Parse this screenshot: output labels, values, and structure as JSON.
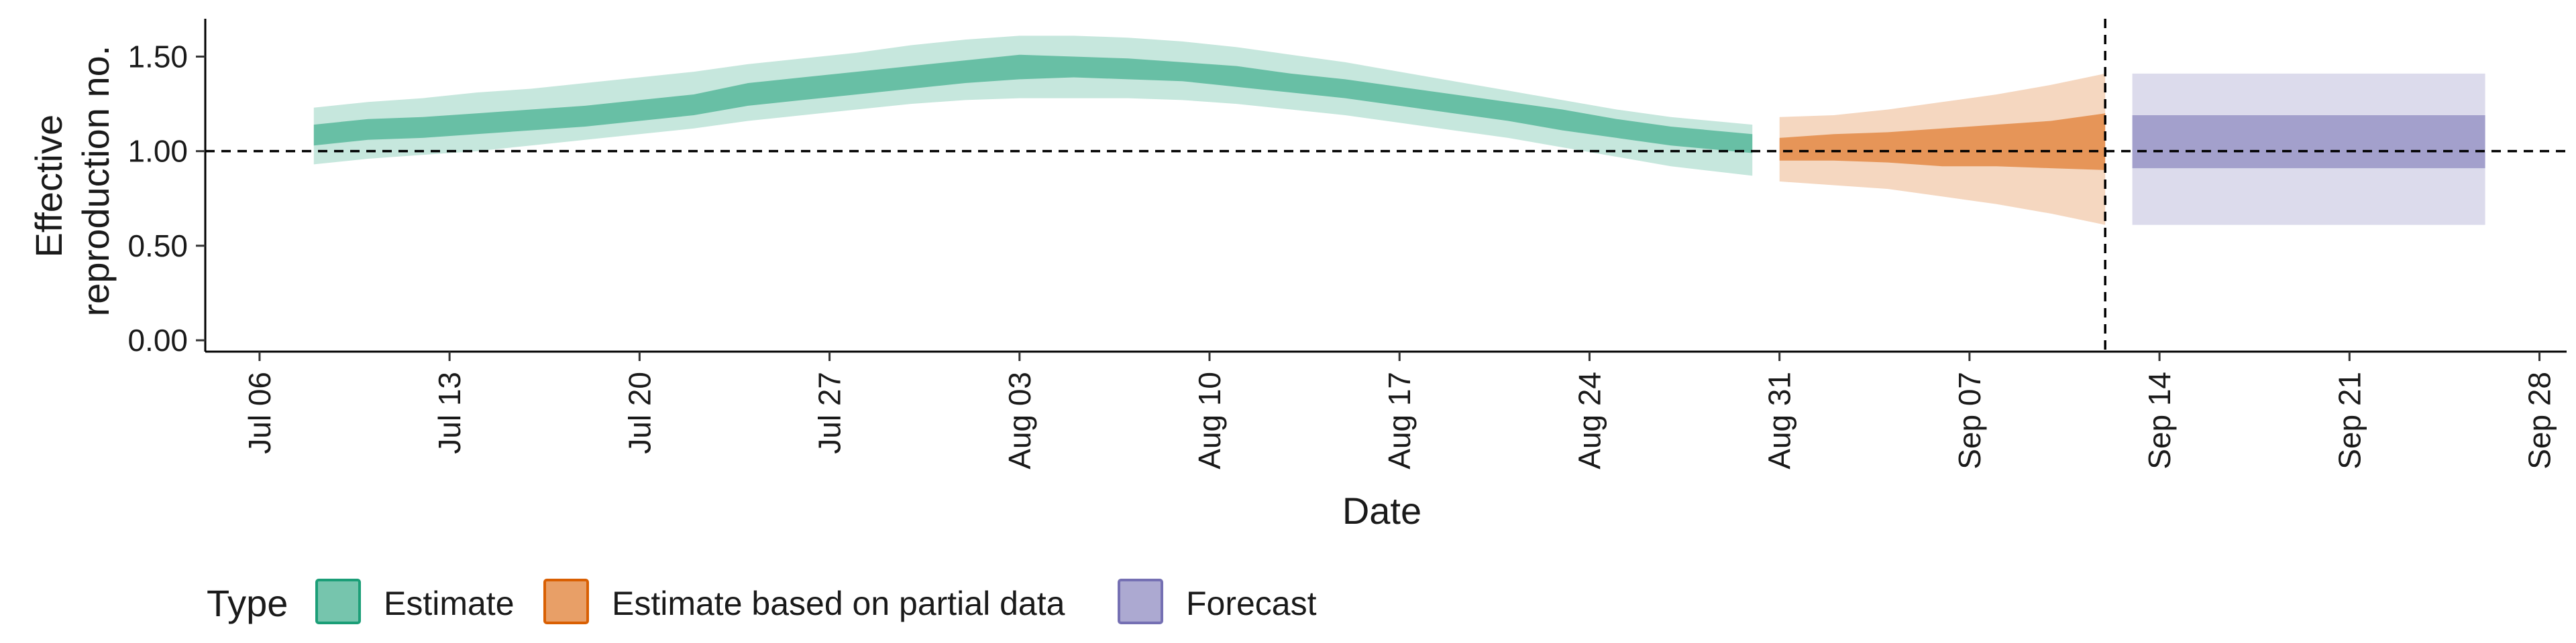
{
  "chart_data": {
    "type": "area",
    "xlabel": "Date",
    "ylabel_lines": [
      "Effective",
      "reproduction no."
    ],
    "ylim": [
      -0.06,
      1.7
    ],
    "xlim": [
      "2020-07-04",
      "2020-09-29"
    ],
    "y_ticks": [
      "0.00",
      "0.50",
      "1.00",
      "1.50"
    ],
    "x_ticks": [
      {
        "date": "2020-07-06",
        "label": "Jul 06"
      },
      {
        "date": "2020-07-13",
        "label": "Jul 13"
      },
      {
        "date": "2020-07-20",
        "label": "Jul 20"
      },
      {
        "date": "2020-07-27",
        "label": "Jul 27"
      },
      {
        "date": "2020-08-03",
        "label": "Aug 03"
      },
      {
        "date": "2020-08-10",
        "label": "Aug 10"
      },
      {
        "date": "2020-08-17",
        "label": "Aug 17"
      },
      {
        "date": "2020-08-24",
        "label": "Aug 24"
      },
      {
        "date": "2020-08-31",
        "label": "Aug 31"
      },
      {
        "date": "2020-09-07",
        "label": "Sep 07"
      },
      {
        "date": "2020-09-14",
        "label": "Sep 14"
      },
      {
        "date": "2020-09-21",
        "label": "Sep 21"
      },
      {
        "date": "2020-09-28",
        "label": "Sep 28"
      }
    ],
    "reference_line_y": 1.0,
    "vertical_line_x": "2020-09-12",
    "grid": false,
    "legend": {
      "title": "Type",
      "position": "bottom",
      "entries": [
        {
          "label": "Estimate",
          "fill": "#1b9e77",
          "stroke": "#1b9e77"
        },
        {
          "label": "Estimate based on partial data",
          "fill": "#d95f02",
          "stroke": "#d95f02"
        },
        {
          "label": "Forecast",
          "fill": "#7570b3",
          "stroke": "#7570b3"
        }
      ]
    },
    "series": [
      {
        "name": "Estimate",
        "color": "#1b9e77",
        "x": [
          "2020-07-08",
          "2020-07-10",
          "2020-07-12",
          "2020-07-14",
          "2020-07-16",
          "2020-07-18",
          "2020-07-20",
          "2020-07-22",
          "2020-07-24",
          "2020-07-26",
          "2020-07-28",
          "2020-07-30",
          "2020-08-01",
          "2020-08-03",
          "2020-08-05",
          "2020-08-07",
          "2020-08-09",
          "2020-08-11",
          "2020-08-13",
          "2020-08-15",
          "2020-08-17",
          "2020-08-19",
          "2020-08-21",
          "2020-08-23",
          "2020-08-25",
          "2020-08-27",
          "2020-08-30"
        ],
        "outer_low": [
          0.93,
          0.96,
          0.98,
          1.0,
          1.03,
          1.06,
          1.09,
          1.12,
          1.16,
          1.19,
          1.22,
          1.25,
          1.27,
          1.28,
          1.28,
          1.28,
          1.27,
          1.25,
          1.22,
          1.19,
          1.15,
          1.11,
          1.07,
          1.02,
          0.97,
          0.92,
          0.87
        ],
        "outer_high": [
          1.23,
          1.26,
          1.28,
          1.31,
          1.33,
          1.36,
          1.39,
          1.42,
          1.46,
          1.49,
          1.52,
          1.56,
          1.59,
          1.61,
          1.61,
          1.6,
          1.58,
          1.55,
          1.51,
          1.47,
          1.42,
          1.37,
          1.32,
          1.27,
          1.22,
          1.18,
          1.14
        ],
        "inner_low": [
          1.03,
          1.06,
          1.07,
          1.09,
          1.11,
          1.13,
          1.16,
          1.19,
          1.24,
          1.27,
          1.3,
          1.33,
          1.36,
          1.38,
          1.39,
          1.38,
          1.37,
          1.34,
          1.31,
          1.28,
          1.24,
          1.2,
          1.16,
          1.11,
          1.07,
          1.03,
          0.99
        ],
        "inner_high": [
          1.14,
          1.17,
          1.18,
          1.2,
          1.22,
          1.24,
          1.27,
          1.3,
          1.36,
          1.39,
          1.42,
          1.45,
          1.48,
          1.51,
          1.5,
          1.49,
          1.47,
          1.45,
          1.41,
          1.38,
          1.34,
          1.3,
          1.26,
          1.22,
          1.17,
          1.13,
          1.09
        ]
      },
      {
        "name": "Estimate based on partial data",
        "color": "#d95f02",
        "x": [
          "2020-08-31",
          "2020-09-02",
          "2020-09-04",
          "2020-09-06",
          "2020-09-08",
          "2020-09-10",
          "2020-09-12"
        ],
        "outer_low": [
          0.84,
          0.82,
          0.8,
          0.76,
          0.72,
          0.67,
          0.61
        ],
        "outer_high": [
          1.18,
          1.19,
          1.22,
          1.26,
          1.3,
          1.35,
          1.41
        ],
        "inner_low": [
          0.95,
          0.95,
          0.94,
          0.92,
          0.92,
          0.91,
          0.9
        ],
        "inner_high": [
          1.07,
          1.09,
          1.1,
          1.12,
          1.14,
          1.16,
          1.2
        ]
      },
      {
        "name": "Forecast",
        "color": "#7570b3",
        "x": [
          "2020-09-13",
          "2020-09-26"
        ],
        "outer_low": [
          0.61,
          0.61
        ],
        "outer_high": [
          1.41,
          1.41
        ],
        "inner_low": [
          0.91,
          0.91
        ],
        "inner_high": [
          1.19,
          1.19
        ]
      }
    ]
  }
}
